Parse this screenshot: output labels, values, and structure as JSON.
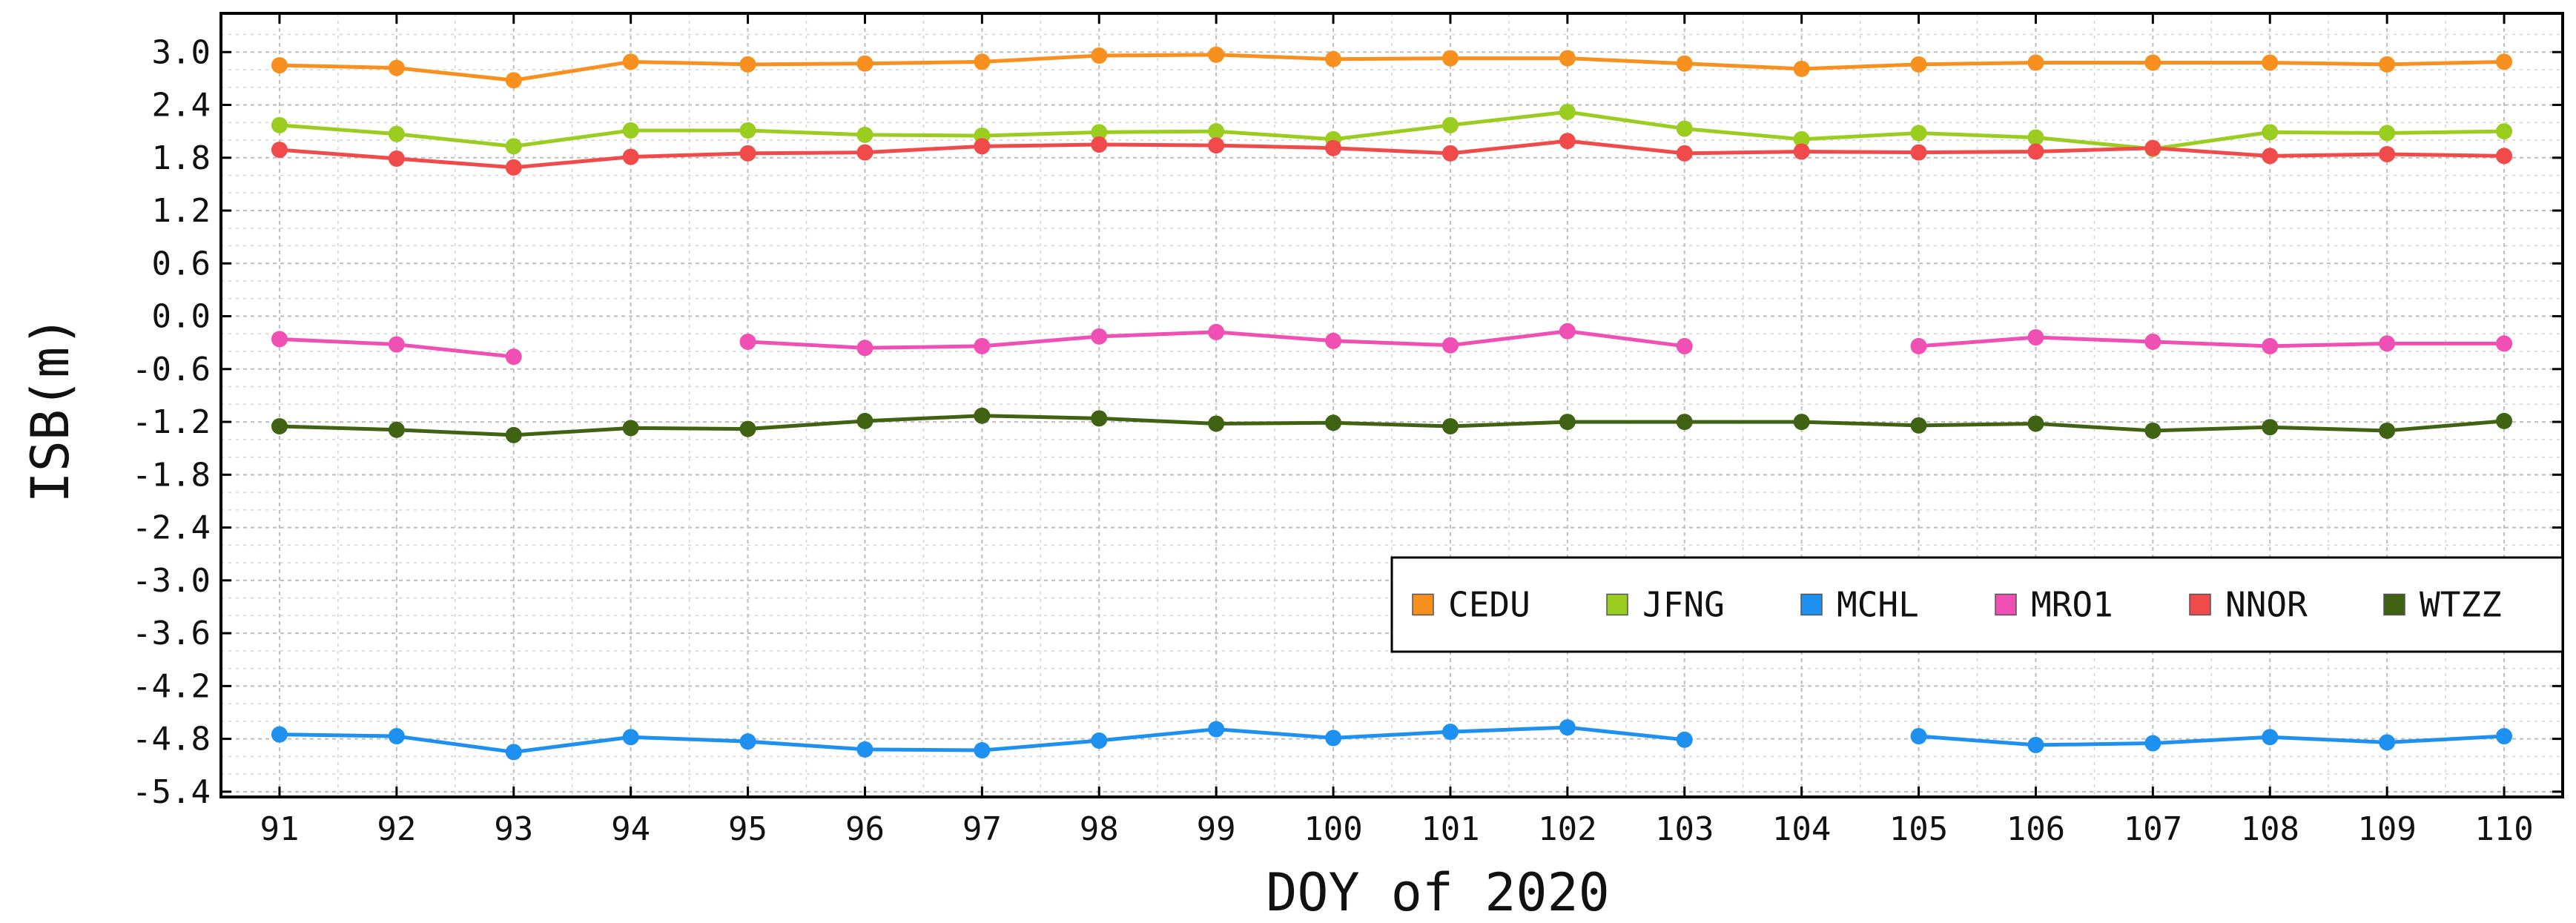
{
  "chart_data": {
    "type": "line",
    "title": "",
    "xlabel": "DOY of 2020",
    "ylabel": "ISB(m)",
    "x": [
      91,
      92,
      93,
      94,
      95,
      96,
      97,
      98,
      99,
      100,
      101,
      102,
      103,
      104,
      105,
      106,
      107,
      108,
      109,
      110
    ],
    "xlim": [
      90.5,
      110.5
    ],
    "ylim": [
      -5.46,
      3.44
    ],
    "y_ticks": [
      3.0,
      2.4,
      1.8,
      1.2,
      0.6,
      0.0,
      -0.6,
      -1.2,
      -1.8,
      -2.4,
      -3.0,
      -3.6,
      -4.2,
      -4.8,
      -5.4
    ],
    "y_tick_labels": [
      "3.0",
      "2.4",
      "1.8",
      "1.2",
      "0.6",
      "0.0",
      "-0.6",
      "-1.2",
      "-1.8",
      "-2.4",
      "-3.0",
      "-3.6",
      "-4.2",
      "-4.8",
      "-5.4"
    ],
    "grid": true,
    "legend_position": "lower-right",
    "series": [
      {
        "name": "CEDU",
        "color": "#F7901E",
        "values": [
          2.85,
          2.82,
          2.68,
          2.89,
          2.86,
          2.87,
          2.89,
          2.96,
          2.97,
          2.92,
          2.93,
          2.93,
          2.87,
          2.81,
          2.86,
          2.88,
          2.88,
          2.88,
          2.86,
          2.89
        ]
      },
      {
        "name": "JFNG",
        "color": "#9ACD1F",
        "values": [
          2.17,
          2.07,
          1.93,
          2.11,
          2.11,
          2.06,
          2.05,
          2.09,
          2.1,
          2.01,
          2.17,
          2.32,
          2.13,
          2.01,
          2.08,
          2.03,
          1.9,
          2.09,
          2.08,
          2.1
        ]
      },
      {
        "name": "MCHL",
        "color": "#1E90F0",
        "values": [
          -4.75,
          -4.77,
          -4.95,
          -4.78,
          -4.83,
          -4.92,
          -4.93,
          -4.82,
          -4.69,
          -4.79,
          -4.72,
          -4.67,
          -4.81,
          null,
          -4.77,
          -4.87,
          -4.85,
          -4.78,
          -4.84,
          -4.77
        ]
      },
      {
        "name": "MRO1",
        "color": "#F050B4",
        "values": [
          -0.26,
          -0.32,
          -0.46,
          null,
          -0.29,
          -0.36,
          -0.34,
          -0.23,
          -0.18,
          -0.28,
          -0.33,
          -0.17,
          -0.34,
          null,
          -0.34,
          -0.24,
          -0.29,
          -0.34,
          -0.31,
          -0.31
        ]
      },
      {
        "name": "NNOR",
        "color": "#F04A4A",
        "values": [
          1.89,
          1.79,
          1.69,
          1.81,
          1.85,
          1.86,
          1.93,
          1.95,
          1.94,
          1.91,
          1.85,
          1.99,
          1.85,
          1.87,
          1.86,
          1.87,
          1.91,
          1.82,
          1.84,
          1.82
        ]
      },
      {
        "name": "WTZZ",
        "color": "#3F6312",
        "values": [
          -1.25,
          -1.29,
          -1.35,
          -1.27,
          -1.28,
          -1.19,
          -1.13,
          -1.16,
          -1.22,
          -1.21,
          -1.25,
          -1.2,
          -1.2,
          -1.2,
          -1.24,
          -1.22,
          -1.3,
          -1.26,
          -1.3,
          -1.19
        ]
      }
    ]
  }
}
